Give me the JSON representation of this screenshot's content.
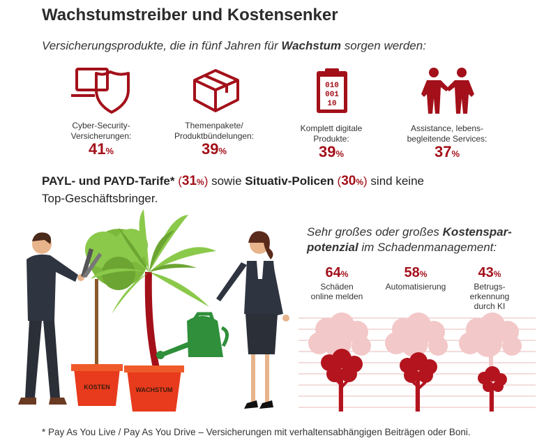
{
  "header": {
    "title": "Wachstumstreiber und Kostensenker",
    "subtitle_pre": "Versicherungsprodukte, die in fünf Jahren für ",
    "subtitle_bold": "Wachstum",
    "subtitle_post": " sorgen werden:"
  },
  "growth_products": [
    {
      "icon": "laptop-shield-icon",
      "label_line1": "Cyber-Security-",
      "label_line2": "Versicherungen:",
      "value": "41",
      "unit": "%"
    },
    {
      "icon": "box-icon",
      "label_line1": "Themenpakete/",
      "label_line2": "Produktbündelungen:",
      "value": "39",
      "unit": "%"
    },
    {
      "icon": "binary-clipboard-icon",
      "label_line1": "Komplett digitale",
      "label_line2": "Produkte:",
      "value": "39",
      "unit": "%"
    },
    {
      "icon": "handshake-people-icon",
      "label_line1": "Assistance, lebens-",
      "label_line2": "begleitende Services:",
      "value": "37",
      "unit": "%"
    }
  ],
  "tarife": {
    "part1": "PAYL- und PAYD-Tarife*",
    "open1": " (",
    "value1": "31",
    "unit1": "%",
    "close1": ")",
    "mid": " sowie ",
    "part2": "Situativ-Policen",
    "open2": " (",
    "value2": "30",
    "unit2": "%",
    "close2": ")",
    "post": " sind keine",
    "line2": "Top-Geschäftsbringer."
  },
  "cost": {
    "title_pre": "Sehr großes oder großes ",
    "title_bold1": "Kostenspar-",
    "title_bold2": "potenzial",
    "title_post": " im Schadenmanagement:",
    "items": [
      {
        "value": "64",
        "unit": "%",
        "label_line1": "Schäden",
        "label_line2": "online melden",
        "label_line3": ""
      },
      {
        "value": "58",
        "unit": "%",
        "label_line1": "Automatisierung",
        "label_line2": "",
        "label_line3": ""
      },
      {
        "value": "43",
        "unit": "%",
        "label_line1": "Betrugs-",
        "label_line2": "erkennung",
        "label_line3": "durch KI"
      }
    ]
  },
  "illustration": {
    "pot_left_label": "KOSTEN",
    "pot_right_label": "WACHSTUM"
  },
  "footnote": "* Pay As You Live / Pay As You Drive – Versicherungen mit verhaltensabhängigen Beiträgen oder Boni.",
  "colors": {
    "accent": "#a3101a",
    "pot": "#e83a1c",
    "leaf": "#86c440",
    "tree_light": "#f2c6c6",
    "line": "#e5b9b9"
  }
}
